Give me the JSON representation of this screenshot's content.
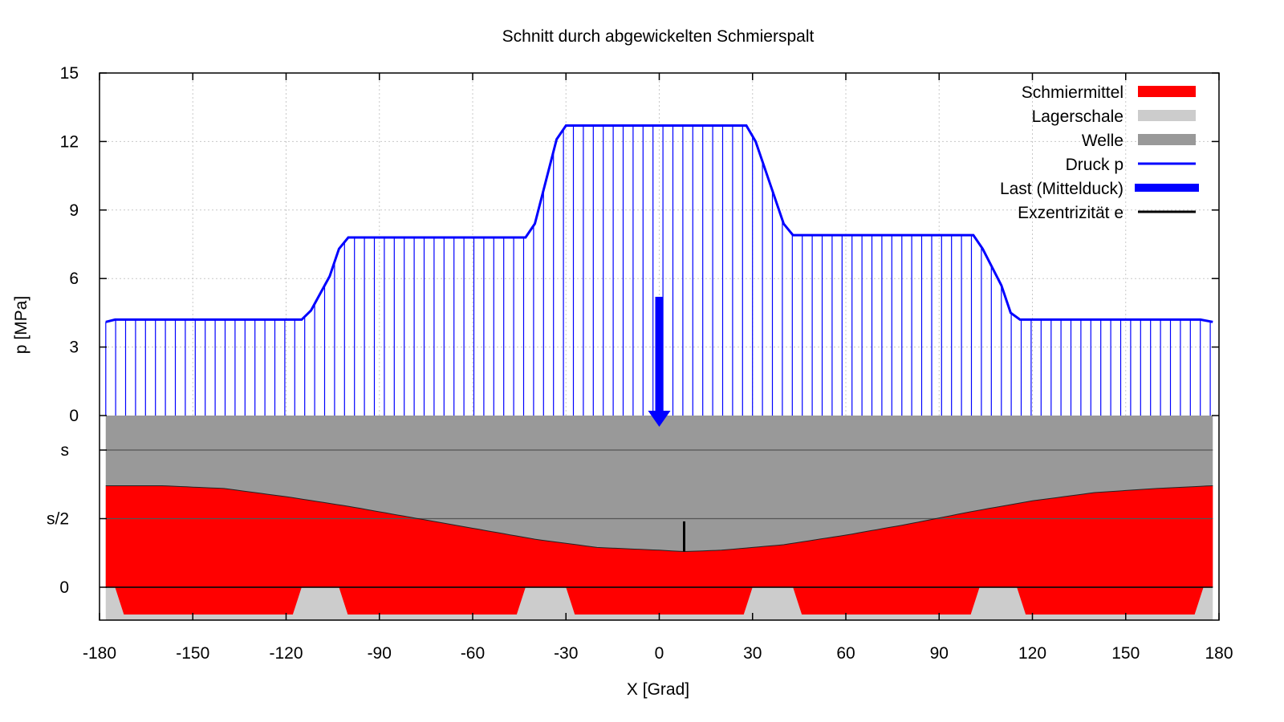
{
  "chart_data": {
    "type": "area",
    "title": "Schnitt durch abgewickelten Schmierspalt",
    "xlabel": "X [Grad]",
    "ylabel": "p [MPa]",
    "xlim": [
      -180,
      180
    ],
    "x_ticks": [
      -180,
      -150,
      -120,
      -90,
      -60,
      -30,
      0,
      30,
      60,
      90,
      120,
      150,
      180
    ],
    "pressure_axis": {
      "ylim": [
        0,
        15
      ],
      "ticks": [
        0,
        3,
        6,
        9,
        12,
        15
      ]
    },
    "gap_axis": {
      "ticks": [
        "s",
        "s/2",
        "0"
      ],
      "ticks_values": [
        1,
        0.5,
        0
      ]
    },
    "grid": true,
    "legend_position": "top-right",
    "legend": [
      {
        "label": "Schmiermittel",
        "color": "#ff0000",
        "kind": "box"
      },
      {
        "label": "Lagerschale",
        "color": "#cccccc",
        "kind": "box"
      },
      {
        "label": "Welle",
        "color": "#999999",
        "kind": "box"
      },
      {
        "label": "Druck p",
        "color": "#0000ff",
        "kind": "line"
      },
      {
        "label": "Last (Mittelduck)",
        "color": "#0000ff",
        "kind": "thick"
      },
      {
        "label": "Exzentrizität e",
        "color": "#000000",
        "kind": "line"
      }
    ],
    "series": [
      {
        "name": "Druck p",
        "x": [
          -178,
          -175,
          -115,
          -112,
          -106,
          -103,
          -100,
          -43,
          -40,
          -33,
          -30,
          -27,
          28,
          31,
          37,
          40,
          43,
          101,
          104,
          110,
          113,
          116,
          174,
          178
        ],
        "y": [
          4.1,
          4.2,
          4.2,
          4.6,
          6.1,
          7.3,
          7.8,
          7.8,
          8.4,
          12.1,
          12.7,
          12.7,
          12.7,
          12.0,
          9.6,
          8.4,
          7.9,
          7.9,
          7.3,
          5.7,
          4.5,
          4.2,
          4.2,
          4.1
        ]
      },
      {
        "name": "Schmiermittel",
        "x": [
          -178,
          -160,
          -140,
          -120,
          -100,
          -80,
          -60,
          -40,
          -20,
          0,
          8,
          20,
          40,
          60,
          80,
          100,
          120,
          140,
          160,
          178
        ],
        "y": [
          0.74,
          0.74,
          0.72,
          0.66,
          0.59,
          0.51,
          0.43,
          0.35,
          0.29,
          0.27,
          0.26,
          0.27,
          0.31,
          0.38,
          0.46,
          0.55,
          0.63,
          0.69,
          0.72,
          0.74
        ]
      },
      {
        "name": "Last (Mittelduck)",
        "x": [
          0
        ],
        "y_from": [
          5.2
        ],
        "y_to": [
          0
        ]
      },
      {
        "name": "Exzentrizität e",
        "x": [
          8
        ],
        "y_from": [
          0.48
        ],
        "y_to": [
          0.26
        ]
      },
      {
        "name": "Lagerschale",
        "pocket_x_ranges": [
          [
            -175,
            -115
          ],
          [
            -103,
            -43
          ],
          [
            -30,
            30
          ],
          [
            43,
            103
          ],
          [
            115,
            175
          ]
        ]
      }
    ]
  }
}
